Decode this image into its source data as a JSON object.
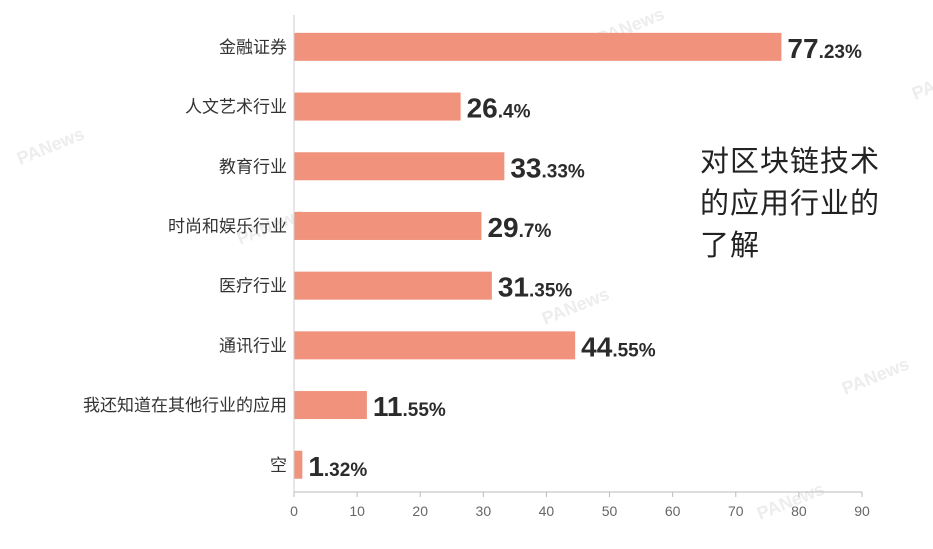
{
  "chart_data": {
    "type": "bar",
    "orientation": "horizontal",
    "title": "对区块链技术的应用行业的了解",
    "categories": [
      "金融证券",
      "人文艺术行业",
      "教育行业",
      "时尚和娱乐行业",
      "医疗行业",
      "通讯行业",
      "我还知道在其他行业的应用",
      "空"
    ],
    "values": [
      77.23,
      26.4,
      33.33,
      29.7,
      31.35,
      44.55,
      11.55,
      1.32
    ],
    "value_labels": [
      {
        "int": "77",
        "dec": ".23%"
      },
      {
        "int": "26",
        "dec": ".4%"
      },
      {
        "int": "33",
        "dec": ".33%"
      },
      {
        "int": "29",
        "dec": ".7%"
      },
      {
        "int": "31",
        "dec": ".35%"
      },
      {
        "int": "44",
        "dec": ".55%"
      },
      {
        "int": "11",
        "dec": ".55%"
      },
      {
        "int": "1",
        "dec": ".32%"
      }
    ],
    "xlim": [
      0,
      90
    ],
    "xticks": [
      0,
      10,
      20,
      30,
      40,
      50,
      60,
      70,
      80,
      90
    ],
    "grid": false,
    "bar_color": "#f0927c",
    "axis_color": "#bbbbbb"
  },
  "watermark": "PANews"
}
